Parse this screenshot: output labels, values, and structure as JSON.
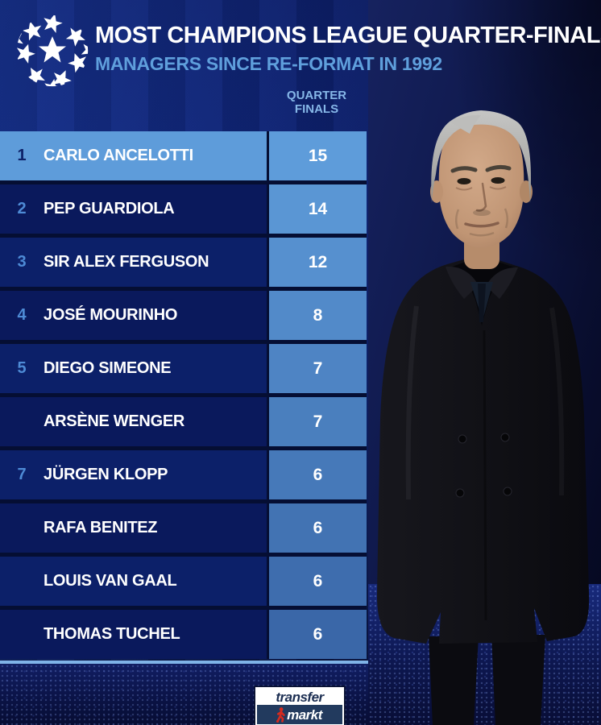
{
  "header": {
    "title": "MOST CHAMPIONS LEAGUE QUARTER-FINALS",
    "subtitle": "MANAGERS SINCE RE-FORMAT IN 1992"
  },
  "column_header": {
    "line1": "QUARTER",
    "line2": "FINALS"
  },
  "table": {
    "rows": [
      {
        "rank": "1",
        "name": "CARLO ANCELOTTI",
        "value": "15",
        "highlight": true
      },
      {
        "rank": "2",
        "name": "PEP GUARDIOLA",
        "value": "14",
        "highlight": false
      },
      {
        "rank": "3",
        "name": "SIR ALEX FERGUSON",
        "value": "12",
        "highlight": false
      },
      {
        "rank": "4",
        "name": "JOSÉ MOURINHO",
        "value": "8",
        "highlight": false
      },
      {
        "rank": "5",
        "name": "DIEGO SIMEONE",
        "value": "7",
        "highlight": false
      },
      {
        "rank": "",
        "name": "ARSÈNE WENGER",
        "value": "7",
        "highlight": false
      },
      {
        "rank": "7",
        "name": "JÜRGEN KLOPP",
        "value": "6",
        "highlight": false
      },
      {
        "rank": "",
        "name": "RAFA BENITEZ",
        "value": "6",
        "highlight": false
      },
      {
        "rank": "",
        "name": "LOUIS VAN GAAL",
        "value": "6",
        "highlight": false
      },
      {
        "rank": "",
        "name": "THOMAS TUCHEL",
        "value": "6",
        "highlight": false
      }
    ]
  },
  "footer": {
    "brand_top": "transfer",
    "brand_bottom": "markt"
  },
  "colors": {
    "highlight": "#5e9cda",
    "value_start": "#5e9cda",
    "value_end": "#3a67a8",
    "row_navy_a": "#0a195c",
    "row_navy_b": "#0c2069",
    "rank_blue": "#4e8bd6",
    "rank_dark": "#0d2268",
    "subtitle_blue": "#5f9fdc",
    "column_header_blue": "#86b7e8",
    "bottom_line_blue": "#7fb3e8"
  },
  "chart_data": {
    "type": "table",
    "title": "MOST CHAMPIONS LEAGUE QUARTER-FINALS",
    "subtitle": "MANAGERS SINCE RE-FORMAT IN 1992",
    "value_column": "QUARTER FINALS",
    "ranks": [
      "1",
      "2",
      "3",
      "4",
      "5",
      "",
      "7",
      "",
      "",
      ""
    ],
    "categories": [
      "CARLO ANCELOTTI",
      "PEP GUARDIOLA",
      "SIR ALEX FERGUSON",
      "JOSÉ MOURINHO",
      "DIEGO SIMEONE",
      "ARSÈNE WENGER",
      "JÜRGEN KLOPP",
      "RAFA BENITEZ",
      "LOUIS VAN GAAL",
      "THOMAS TUCHEL"
    ],
    "values": [
      15,
      14,
      12,
      8,
      7,
      7,
      6,
      6,
      6,
      6
    ],
    "highlighted_row": "CARLO ANCELOTTI"
  }
}
